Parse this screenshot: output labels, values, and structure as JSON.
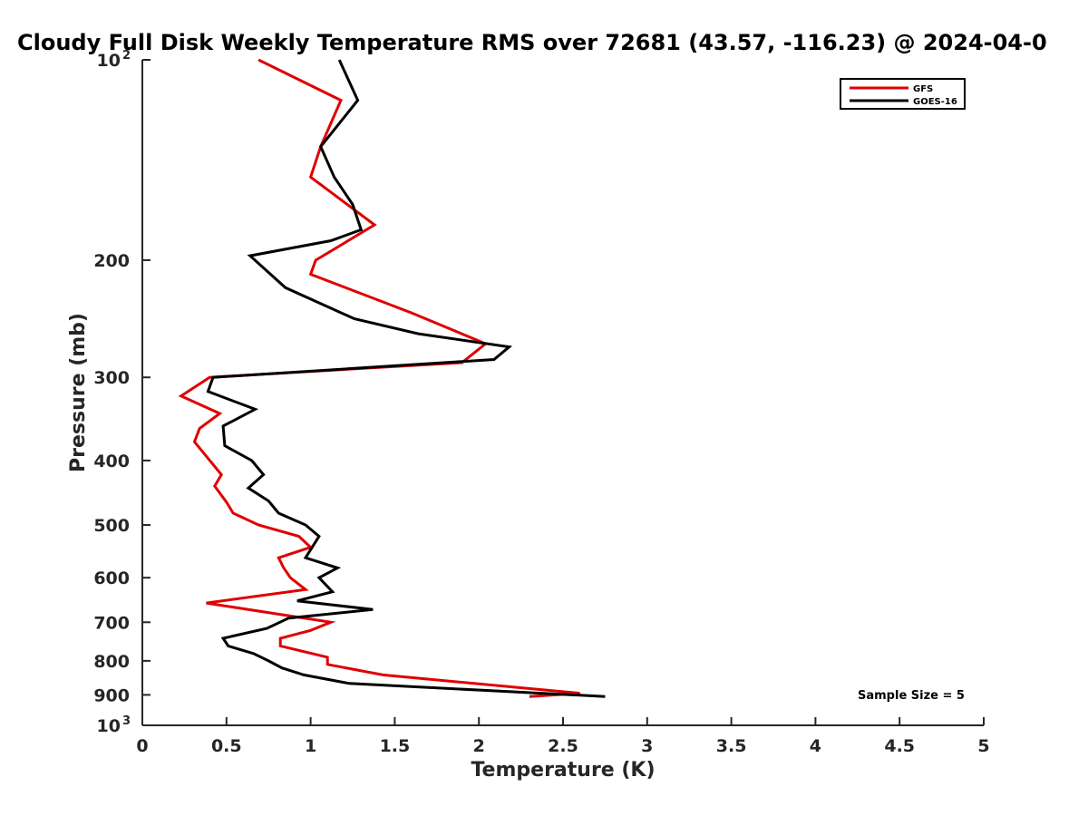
{
  "chart_data": {
    "type": "line",
    "title": "Cloudy Full Disk Weekly Temperature RMS over 72681 (43.57, -116.23) @ 2024-04-0",
    "xlabel": "Temperature (K)",
    "ylabel": "Pressure (mb)",
    "xlim": [
      0,
      5
    ],
    "ylim": [
      1000,
      100
    ],
    "y_scale": "log",
    "y_reversed": true,
    "x_ticks": [
      "0",
      "0.5",
      "1",
      "1.5",
      "2",
      "2.5",
      "3",
      "3.5",
      "4",
      "4.5",
      "5"
    ],
    "y_ticks": [
      {
        "value": 100,
        "label": "10",
        "sup": "2"
      },
      {
        "value": 200,
        "label": "200"
      },
      {
        "value": 300,
        "label": "300"
      },
      {
        "value": 400,
        "label": "400"
      },
      {
        "value": 500,
        "label": "500"
      },
      {
        "value": 600,
        "label": "600"
      },
      {
        "value": 700,
        "label": "700"
      },
      {
        "value": 800,
        "label": "800"
      },
      {
        "value": 900,
        "label": "900"
      },
      {
        "value": 1000,
        "label": "10",
        "sup": "3"
      }
    ],
    "grid": false,
    "legend_position": "top-right",
    "annotation": "Sample Size = 5",
    "series": [
      {
        "name": "GFS",
        "color": "#e00000",
        "x": [
          0.69,
          1.18,
          1.06,
          1.0,
          1.38,
          1.03,
          1.0,
          1.6,
          2.04,
          1.9,
          0.4,
          0.23,
          0.46,
          0.34,
          0.31,
          0.47,
          0.43,
          0.5,
          0.54,
          0.69,
          0.93,
          1.0,
          0.81,
          0.84,
          0.88,
          0.97,
          0.38,
          0.8,
          1.12,
          1.0,
          0.82,
          0.82,
          1.1,
          1.1,
          1.43,
          2.6,
          2.3
        ],
        "y": [
          100,
          115,
          135,
          150,
          177,
          200,
          210,
          240,
          267,
          285,
          300,
          320,
          340,
          358,
          375,
          420,
          437,
          462,
          480,
          500,
          520,
          540,
          560,
          580,
          600,
          625,
          655,
          680,
          700,
          720,
          740,
          760,
          790,
          810,
          840,
          895,
          905
        ]
      },
      {
        "name": "GOES-16",
        "color": "#000000",
        "x": [
          1.17,
          1.28,
          1.06,
          1.14,
          1.25,
          1.3,
          1.12,
          0.64,
          0.85,
          1.26,
          1.64,
          2.18,
          2.09,
          0.42,
          0.39,
          0.67,
          0.48,
          0.49,
          0.65,
          0.72,
          0.63,
          0.75,
          0.81,
          0.97,
          1.05,
          0.97,
          1.16,
          1.05,
          1.13,
          0.92,
          1.37,
          0.87,
          0.74,
          0.48,
          0.51,
          0.66,
          0.75,
          0.83,
          0.96,
          1.23,
          2.75
        ],
        "y": [
          100,
          115,
          135,
          150,
          165,
          180,
          187,
          197,
          220,
          245,
          258,
          270,
          282,
          300,
          315,
          335,
          355,
          380,
          400,
          420,
          440,
          460,
          480,
          500,
          520,
          560,
          580,
          600,
          630,
          650,
          670,
          690,
          715,
          740,
          760,
          780,
          800,
          820,
          840,
          865,
          905
        ]
      }
    ]
  }
}
